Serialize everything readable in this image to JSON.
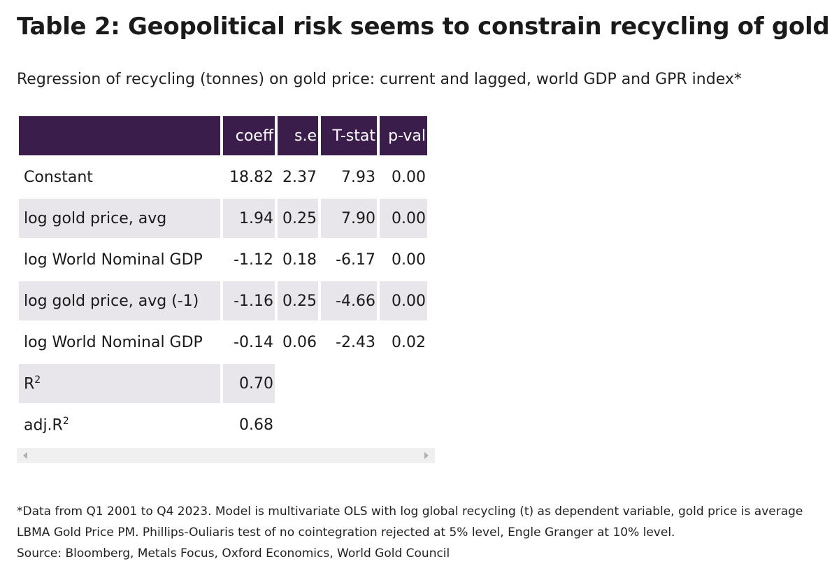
{
  "title": "Table 2: Geopolitical risk seems to constrain recycling of gold",
  "subtitle": "Regression of recycling (tonnes) on gold price: current and lagged, world GDP and GPR index*",
  "table": {
    "headers": [
      "",
      "coeff",
      "s.e",
      "T-stat",
      "p-val"
    ],
    "rows": [
      {
        "label": "Constant",
        "coeff": "18.82",
        "se": "2.37",
        "tstat": "7.93",
        "pval": "0.00"
      },
      {
        "label": "log gold price, avg",
        "coeff": "1.94",
        "se": "0.25",
        "tstat": "7.90",
        "pval": "0.00"
      },
      {
        "label": "log World Nominal GDP",
        "coeff": "-1.12",
        "se": "0.18",
        "tstat": "-6.17",
        "pval": "0.00"
      },
      {
        "label": "log gold price, avg (-1)",
        "coeff": "-1.16",
        "se": "0.25",
        "tstat": "-4.66",
        "pval": "0.00"
      },
      {
        "label": "log World Nominal GDP",
        "coeff": "-0.14",
        "se": "0.06",
        "tstat": "-2.43",
        "pval": "0.02"
      },
      {
        "label": "R",
        "sup": "2",
        "coeff": "0.70"
      },
      {
        "label": "adj.R",
        "sup": "2",
        "coeff": "0.68"
      }
    ]
  },
  "footnote": "*Data from Q1 2001 to Q4 2023. Model is multivariate OLS with log global recycling (t) as dependent variable, gold price is average LBMA Gold Price PM. Phillips-Ouliaris test of no cointegration rejected at 5% level, Engle Granger at 10% level.",
  "source": "Source: Bloomberg, Metals Focus, Oxford Economics, World Gold Council",
  "colors": {
    "header_bg": "#3b1d4b",
    "row_shade": "#e8e6ea"
  }
}
